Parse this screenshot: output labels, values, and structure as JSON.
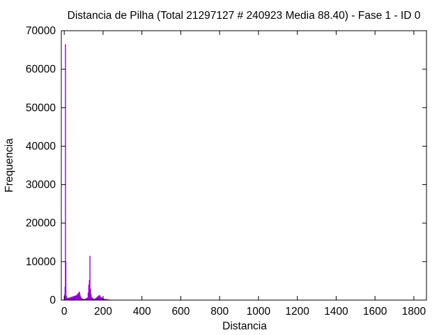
{
  "chart_data": {
    "type": "bar",
    "title": "Distancia de Pilha (Total 21297127 # 240923 Media 88.40) - Fase  1 - ID 0",
    "xlabel": "Distancia",
    "ylabel": "Frequencia",
    "xlim": [
      -15,
      1865
    ],
    "ylim": [
      0,
      70000
    ],
    "x_ticks": [
      0,
      200,
      400,
      600,
      800,
      1000,
      1200,
      1400,
      1600,
      1800
    ],
    "y_ticks": [
      0,
      10000,
      20000,
      30000,
      40000,
      50000,
      60000,
      70000
    ],
    "x_tick_labels": [
      "0",
      "200",
      "400",
      "600",
      "800",
      "1000",
      "1200",
      "1400",
      "1600",
      "1800"
    ],
    "y_tick_labels": [
      "0",
      "10000",
      "20000",
      "30000",
      "40000",
      "50000",
      "60000",
      "70000"
    ],
    "grid": false,
    "legend": "none",
    "bar_color": "#9400d3",
    "series": [
      {
        "x": [
          1,
          2,
          4,
          6,
          8,
          10,
          12,
          15,
          18,
          21,
          24,
          27,
          30,
          33,
          36,
          39,
          42,
          45,
          48,
          51,
          54,
          57,
          60,
          63,
          66,
          69,
          72,
          75,
          78,
          81,
          84,
          87,
          90,
          93,
          96,
          99,
          102,
          105,
          108,
          111,
          114,
          117,
          120,
          123,
          126,
          129,
          132,
          135,
          138,
          141,
          144,
          147,
          150,
          153,
          156,
          159,
          162,
          165,
          168,
          171,
          174,
          177,
          180,
          183,
          186,
          189,
          192,
          195,
          198,
          201,
          204,
          207,
          210,
          213,
          216,
          219,
          222,
          225,
          228,
          231,
          234,
          237,
          240,
          250,
          260,
          270,
          280
        ],
        "values": [
          500,
          1500,
          3500,
          66500,
          10000,
          1200,
          800,
          600,
          500,
          600,
          500,
          700,
          600,
          800,
          700,
          900,
          800,
          1000,
          900,
          1100,
          1000,
          1200,
          1100,
          1300,
          1400,
          1600,
          1800,
          2000,
          2200,
          1500,
          1000,
          700,
          500,
          400,
          300,
          300,
          250,
          300,
          300,
          400,
          500,
          600,
          700,
          2000,
          4000,
          5200,
          11500,
          3000,
          1500,
          800,
          600,
          500,
          400,
          350,
          300,
          400,
          500,
          600,
          800,
          900,
          1000,
          1200,
          1100,
          1300,
          900,
          800,
          700,
          600,
          500,
          400,
          350,
          300,
          250,
          300,
          250,
          200,
          200,
          150,
          150,
          120,
          100,
          100,
          80,
          60,
          50,
          30,
          20
        ]
      }
    ]
  }
}
